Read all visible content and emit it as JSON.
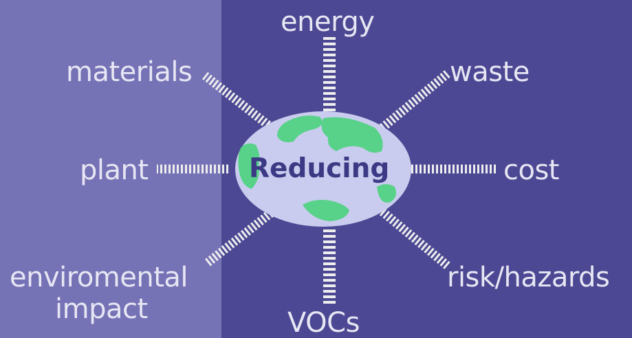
{
  "center": {
    "label": "Reducing"
  },
  "spokes": [
    {
      "id": "energy",
      "label": "energy"
    },
    {
      "id": "waste",
      "label": "waste"
    },
    {
      "id": "cost",
      "label": "cost"
    },
    {
      "id": "risk",
      "label": "risk/hazards"
    },
    {
      "id": "vocs",
      "label": "VOCs"
    },
    {
      "id": "impact",
      "label_line1": "enviromental",
      "label_line2": "impact"
    },
    {
      "id": "plant",
      "label": "plant"
    },
    {
      "id": "materials",
      "label": "materials"
    }
  ],
  "colors": {
    "left_panel": "#7672b6",
    "right_panel": "#4c4893",
    "label_text": "#e7e6f3",
    "spoke_ticks": "#eeeeee",
    "globe_ocean": "#c9ccee",
    "globe_land": "#4bd27d",
    "center_text": "#3d3a85"
  },
  "icons": {
    "center": "globe-icon"
  }
}
